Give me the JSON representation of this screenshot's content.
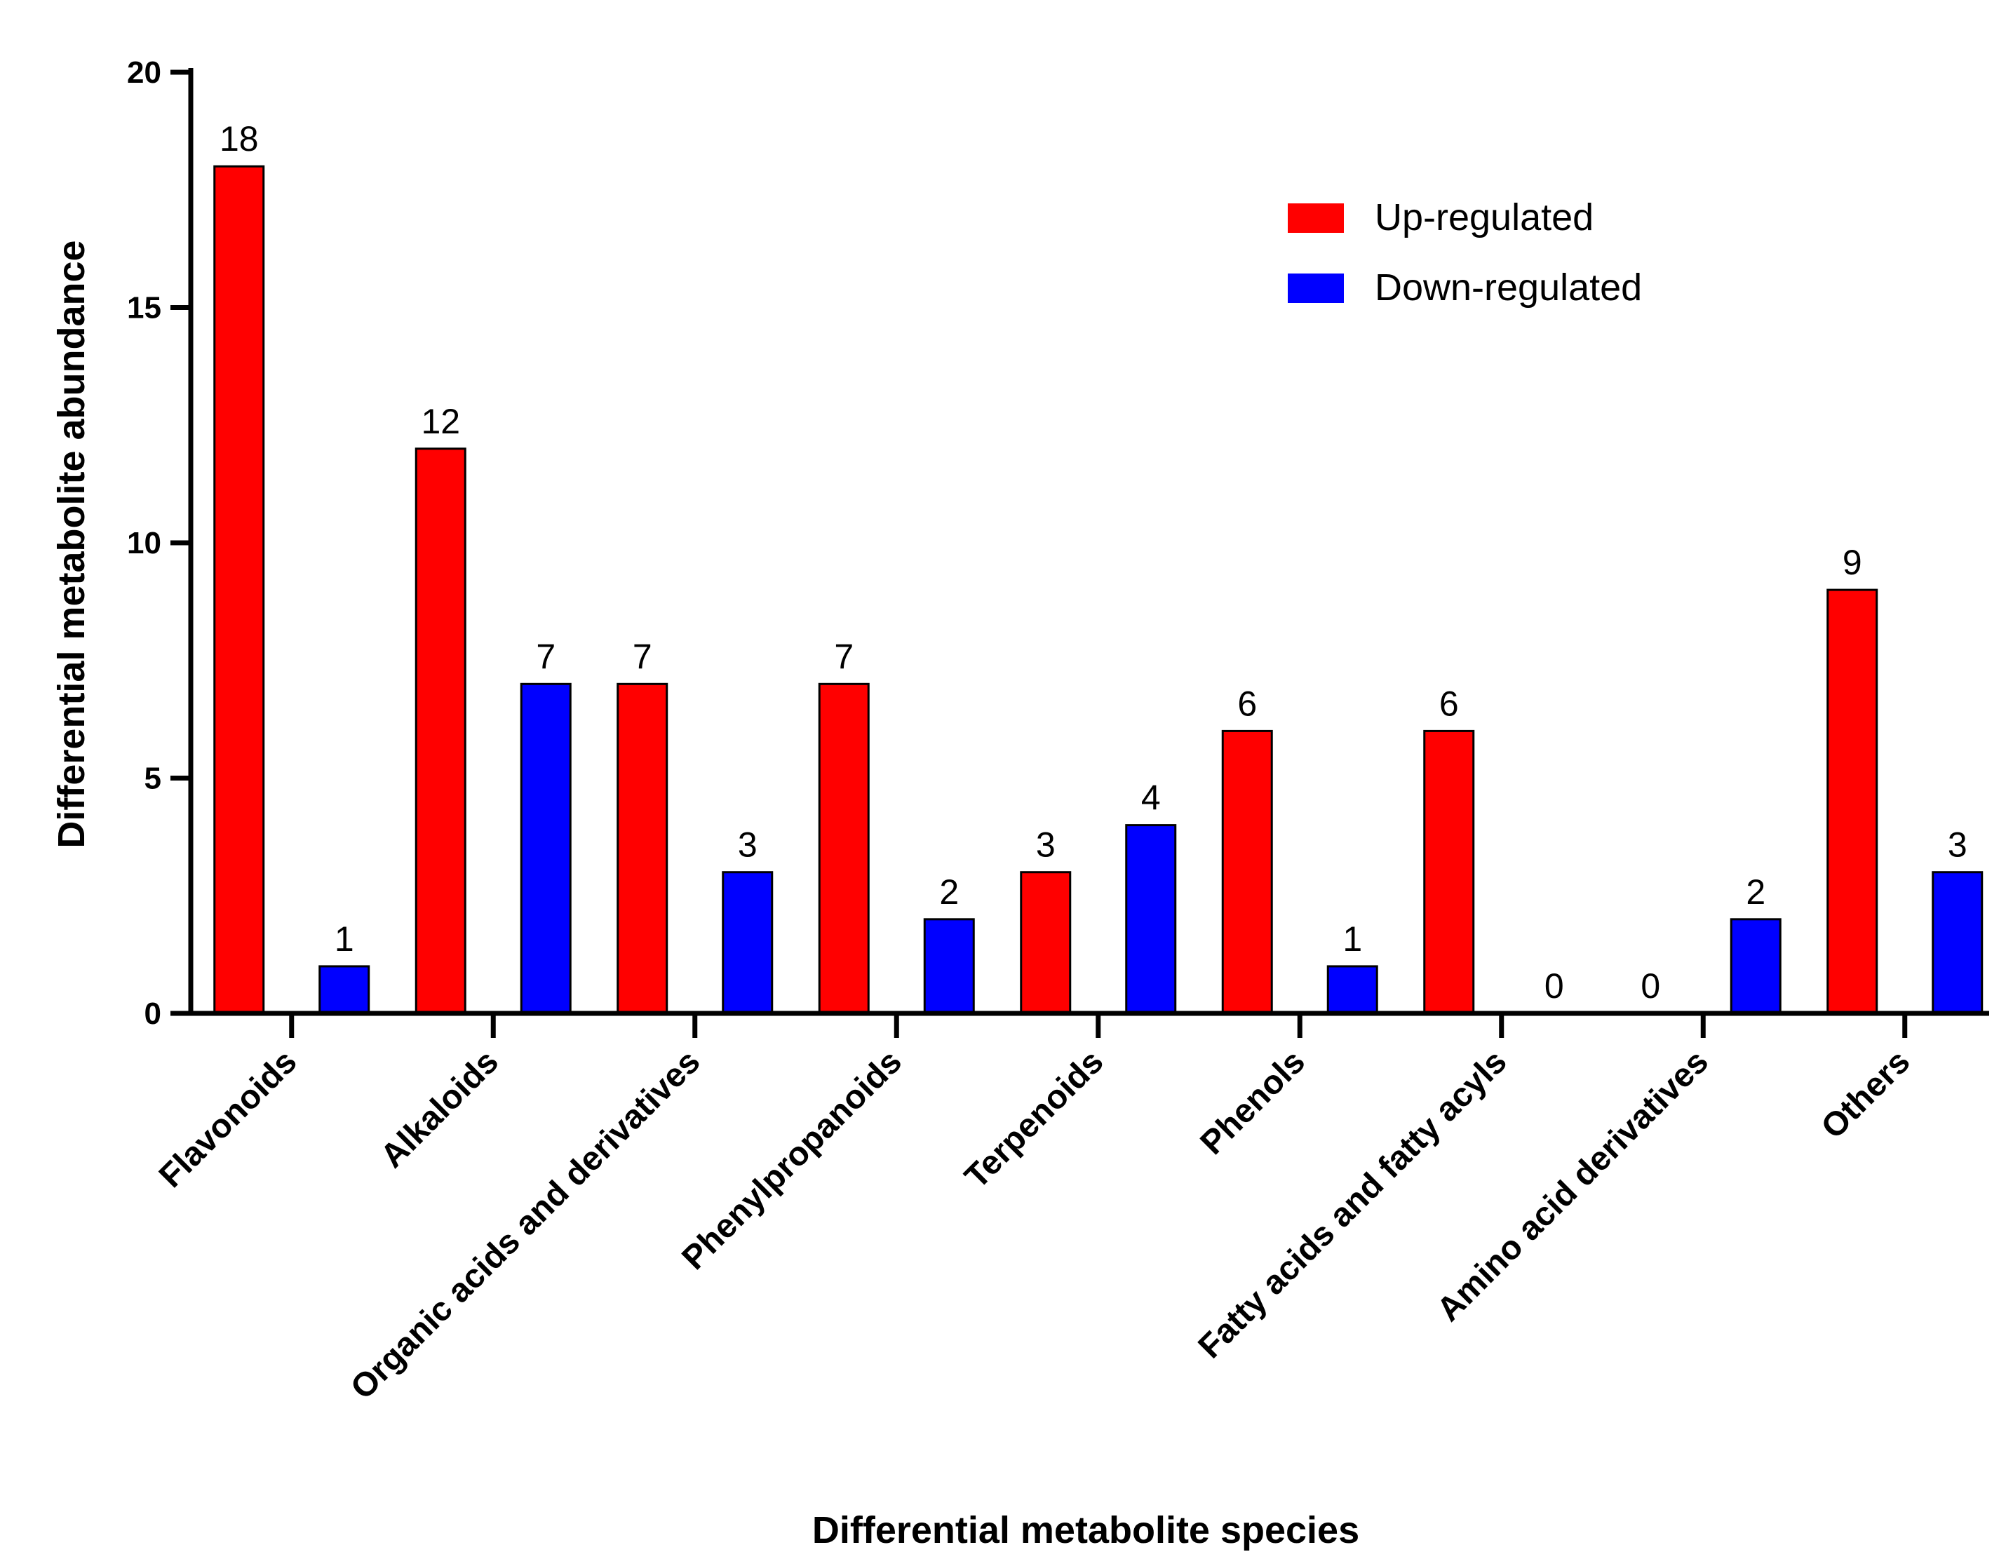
{
  "chart_data": {
    "type": "bar",
    "title": "",
    "xlabel": "Differential metabolite species",
    "ylabel": "Differential metabolite abundance",
    "ylim": [
      0,
      20
    ],
    "yticks": [
      "0",
      "5",
      "10",
      "15",
      "20"
    ],
    "categories": [
      "Flavonoids",
      "Alkaloids",
      "Organic acids and derivatives",
      "Phenylpropanoids",
      "Terpenoids",
      "Phenols",
      "Fatty acids and fatty acyls",
      "Amino acid derivatives",
      "Others"
    ],
    "series": [
      {
        "name": "Up-regulated",
        "color": "#ff0000",
        "values": [
          18,
          12,
          7,
          7,
          3,
          6,
          6,
          0,
          9
        ]
      },
      {
        "name": "Down-regulated",
        "color": "#0000ff",
        "values": [
          1,
          7,
          3,
          2,
          4,
          1,
          0,
          2,
          3
        ]
      }
    ],
    "legend_position": "top-right",
    "grid": false
  }
}
